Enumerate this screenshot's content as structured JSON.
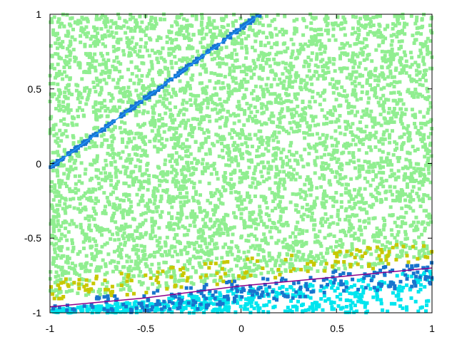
{
  "chart_data": {
    "type": "scatter",
    "title": "",
    "xlabel": "",
    "ylabel": "",
    "xlim": [
      -1,
      1
    ],
    "ylim": [
      -1,
      1
    ],
    "grid": false,
    "legend": "none",
    "x_ticks": [
      -1,
      -0.5,
      0,
      0.5,
      1
    ],
    "y_ticks": [
      -1,
      -0.5,
      0,
      0.5,
      1
    ],
    "x_tick_labels": [
      "-1",
      "-0.5",
      "0",
      "0.5",
      "1"
    ],
    "y_tick_labels": [
      "-1",
      "-0.5",
      "0",
      "0.5",
      "1"
    ],
    "series": [
      {
        "color": "#90ee90",
        "marker": "square",
        "approx_point_count": 5200,
        "distribution": "uniform over the square, above the lower boundary curve"
      },
      {
        "color": "#c8c800",
        "marker": "square",
        "approx_point_count": 150,
        "distribution": "thin band just above the lower boundary curve"
      },
      {
        "color": "#00e5ee",
        "marker": "square",
        "approx_point_count": 550,
        "distribution": "below the lower boundary curve"
      },
      {
        "color": "#1874cd",
        "marker": "square",
        "approx_point_count": 260,
        "distribution": "scattered along the lower boundary curve"
      },
      {
        "color": "#1874cd",
        "marker": "square",
        "approx_point_count": 200,
        "distribution": "along the straight line from (-1, -0.03) to (0.1, 1)"
      }
    ],
    "lines": [
      {
        "color": "#8b008b",
        "points": [
          [
            -1,
            -0.96
          ],
          [
            -0.5,
            -0.9
          ],
          [
            0,
            -0.82
          ],
          [
            0.5,
            -0.76
          ],
          [
            1,
            -0.7
          ]
        ]
      },
      {
        "color": "#1e90ff",
        "points": [
          [
            -1,
            -0.03
          ],
          [
            0.1,
            1
          ]
        ]
      }
    ]
  }
}
